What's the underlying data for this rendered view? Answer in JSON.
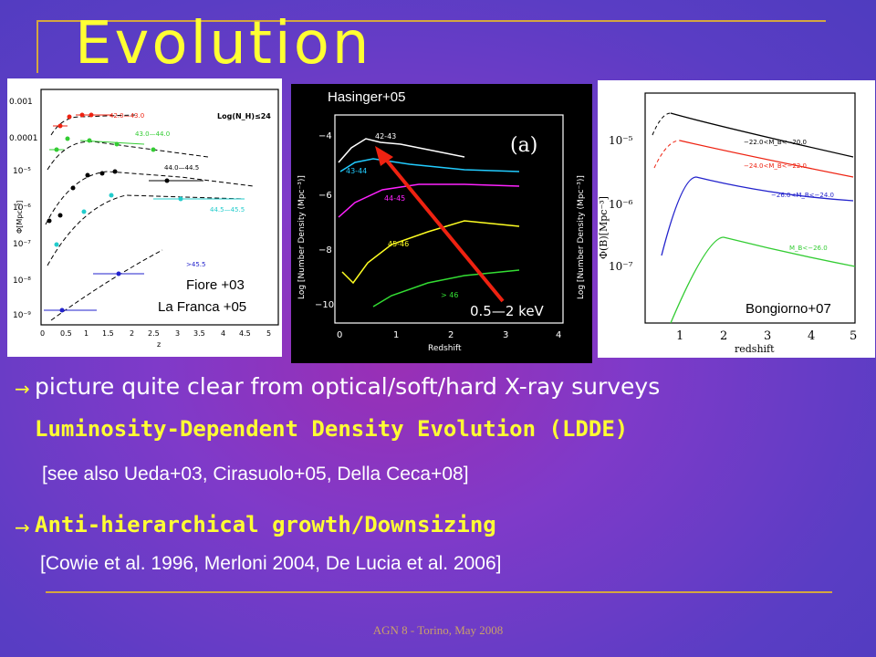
{
  "slide": {
    "title": "Evolution",
    "footer": "AGN 8 - Torino, May 2008",
    "colors": {
      "title": "#ffff33",
      "accent_line": "#d4a640",
      "text": "#ffffff"
    }
  },
  "panels": {
    "left": {
      "credit_line1": "Fiore +03",
      "credit_line2": "La Franca +05",
      "y_ticks": [
        "0.001",
        "0.0001",
        "10⁻⁵",
        "10⁻⁶",
        "10⁻⁷",
        "10⁻⁸",
        "10⁻⁹"
      ],
      "x_ticks": [
        "0",
        "0.5",
        "1",
        "1.5",
        "2",
        "2.5",
        "3",
        "3.5",
        "4",
        "4.5",
        "5"
      ],
      "ylabel": "Φ[Mpc⁻³]",
      "xlabel": "z",
      "legend": "Log(N_H)≤24",
      "series_labels": [
        "42.0—43.0",
        "43.0—44.0",
        "44.0—44.5",
        "44.5—45.5",
        ">45.5"
      ]
    },
    "middle": {
      "header": "Hasinger+05",
      "panel_tag": "(a)",
      "band": "0.5—2 keV",
      "ylabel": "Log [Number Density (Mpc⁻³)]",
      "xlabel": "Redshift",
      "y_ticks": [
        "−4",
        "−6",
        "−8",
        "−10"
      ],
      "x_ticks": [
        "0",
        "1",
        "2",
        "3",
        "4"
      ],
      "series_labels": [
        "42-43",
        "43-44",
        "44-45",
        "45-46",
        "> 46"
      ]
    },
    "right": {
      "credit": "Bongiorno+07",
      "ylabel": "Φ(B)[Mpc⁻³]",
      "xlabel": "redshift",
      "y_ticks": [
        "10⁻⁵",
        "10⁻⁶",
        "10⁻⁷"
      ],
      "x_ticks": [
        "1",
        "2",
        "3",
        "4",
        "5"
      ],
      "series_labels": [
        "−22.0<M_B<−20.0",
        "−24.0<M_B<−22.0",
        "−26.0<M_B<−24.0",
        "M_B<−26.0"
      ]
    }
  },
  "bullets": {
    "b1": "picture quite clear from optical/soft/hard X-ray surveys",
    "b1_sub": "Luminosity-Dependent Density Evolution (LDDE)",
    "b1_ref": "[see also Ueda+03, Cirasuolo+05, Della Ceca+08]",
    "b2": "Anti-hierarchical growth/Downsizing",
    "b2_ref": "[Cowie et al. 1996, Merloni 2004, De Lucia et al. 2006]"
  }
}
